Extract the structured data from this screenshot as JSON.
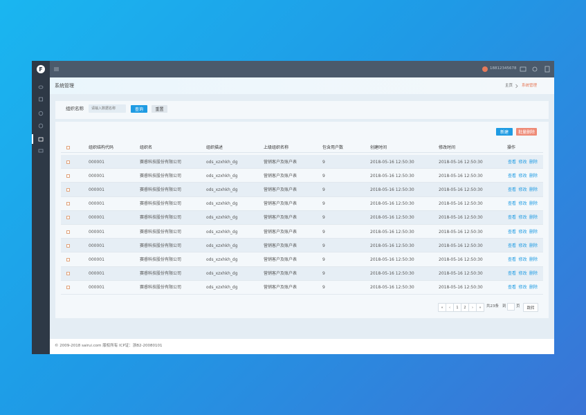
{
  "topbar": {
    "logo": "F",
    "phone": "18812345678"
  },
  "header": {
    "title": "系统管理",
    "breadcrumb": [
      "主页",
      "系统管理"
    ]
  },
  "search": {
    "label": "组织名称",
    "placeholder": "请输入数据名称",
    "buttons": [
      "查询",
      "重置"
    ]
  },
  "toolbar": {
    "buttons": [
      "新建",
      "批量删除"
    ]
  },
  "table": {
    "columns": [
      "组织结构代码",
      "组织名",
      "组织描述",
      "上级组织名称",
      "包含用户数",
      "创建时间",
      "修改时间",
      "操作"
    ],
    "rows": [
      [
        "000001",
        "赛睿科技股份有限公司",
        "ods_xzxhkh_dg",
        "营销客户及账户表",
        9,
        "2018-05-16 12:50:30",
        "2018-05-16 12:50:30"
      ],
      [
        "000001",
        "赛睿科技股份有限公司",
        "ods_xzxhkh_dg",
        "营销客户及账户表",
        9,
        "2018-05-16 12:50:30",
        "2018-05-16 12:50:30"
      ],
      [
        "000001",
        "赛睿科技股份有限公司",
        "ods_xzxhkh_dg",
        "营销客户及账户表",
        9,
        "2018-05-16 12:50:30",
        "2018-05-16 12:50:30"
      ],
      [
        "000001",
        "赛睿科技股份有限公司",
        "ods_xzxhkh_dg",
        "营销客户及账户表",
        9,
        "2018-05-16 12:50:30",
        "2018-05-16 12:50:30"
      ],
      [
        "000001",
        "赛睿科技股份有限公司",
        "ods_xzxhkh_dg",
        "营销客户及账户表",
        9,
        "2018-05-16 12:50:30",
        "2018-05-16 12:50:30"
      ],
      [
        "000001",
        "赛睿科技股份有限公司",
        "ods_xzxhkh_dg",
        "营销客户及账户表",
        9,
        "2018-05-16 12:50:30",
        "2018-05-16 12:50:30"
      ],
      [
        "000001",
        "赛睿科技股份有限公司",
        "ods_xzxhkh_dg",
        "营销客户及账户表",
        9,
        "2018-05-16 12:50:30",
        "2018-05-16 12:50:30"
      ],
      [
        "000001",
        "赛睿科技股份有限公司",
        "ods_xzxhkh_dg",
        "营销客户及账户表",
        9,
        "2018-05-16 12:50:30",
        "2018-05-16 12:50:30"
      ],
      [
        "000001",
        "赛睿科技股份有限公司",
        "ods_xzxhkh_dg",
        "营销客户及账户表",
        9,
        "2018-05-16 12:50:30",
        "2018-05-16 12:50:30"
      ],
      [
        "000001",
        "赛睿科技股份有限公司",
        "ods_xzxhkh_dg",
        "营销客户及账户表",
        9,
        "2018-05-16 12:50:30",
        "2018-05-16 12:50:30"
      ]
    ],
    "actions": [
      "查看",
      "修改",
      "删除"
    ]
  },
  "pagination": {
    "pages": [
      "«",
      "‹",
      1,
      2,
      "›",
      "»"
    ],
    "total": "共23条",
    "goto": "到",
    "page_unit": "页",
    "jump": "跳转"
  },
  "footer": "© 2009-2018 sairui.com 版权所有 ICP证：浙B2-20080101"
}
